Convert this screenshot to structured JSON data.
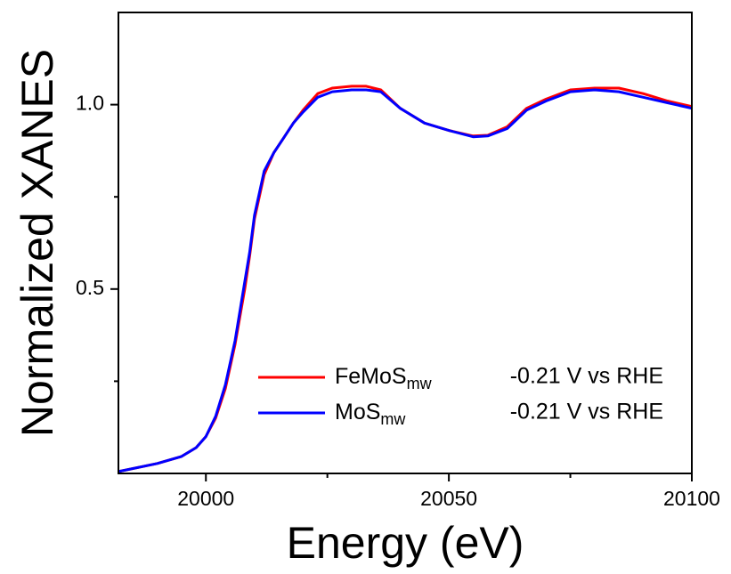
{
  "chart_data": {
    "type": "line",
    "xlabel": "Energy (eV)",
    "ylabel": "Normalized XANES",
    "x": [
      19982,
      19990,
      19995,
      19998,
      20000,
      20002,
      20004,
      20006,
      20008,
      20009,
      20010,
      20012,
      20014,
      20016,
      20018,
      20020,
      20023,
      20026,
      20030,
      20033,
      20036,
      20040,
      20045,
      20050,
      20055,
      20058,
      20062,
      20066,
      20070,
      20075,
      20080,
      20085,
      20090,
      20095,
      20100
    ],
    "series": [
      {
        "name": "FeMoS",
        "subscript": "mw",
        "condition": "-0.21 V vs RHE",
        "color": "#ff0000",
        "values": [
          0.005,
          0.027,
          0.046,
          0.07,
          0.1,
          0.15,
          0.23,
          0.35,
          0.5,
          0.59,
          0.69,
          0.81,
          0.87,
          0.91,
          0.95,
          0.985,
          1.03,
          1.045,
          1.05,
          1.05,
          1.04,
          0.99,
          0.95,
          0.93,
          0.915,
          0.917,
          0.94,
          0.99,
          1.015,
          1.04,
          1.045,
          1.045,
          1.03,
          1.01,
          0.995
        ]
      },
      {
        "name": "MoS",
        "subscript": "mw",
        "condition": "-0.21 V vs RHE",
        "color": "#0000ff",
        "values": [
          0.005,
          0.027,
          0.046,
          0.07,
          0.1,
          0.155,
          0.24,
          0.36,
          0.52,
          0.6,
          0.7,
          0.82,
          0.87,
          0.91,
          0.95,
          0.98,
          1.02,
          1.035,
          1.04,
          1.04,
          1.035,
          0.99,
          0.95,
          0.93,
          0.913,
          0.915,
          0.935,
          0.985,
          1.01,
          1.035,
          1.04,
          1.035,
          1.02,
          1.005,
          0.99
        ]
      }
    ],
    "xlim": [
      19982,
      20100
    ],
    "ylim": [
      0,
      1.25
    ],
    "xticks": [
      20000,
      20050,
      20100
    ],
    "x_minor_ticks": [
      20025,
      20075
    ],
    "yticks": [
      {
        "value": 0.5,
        "label": "0.5"
      },
      {
        "value": 1.0,
        "label": "1.0"
      }
    ],
    "y_minor_ticks": [
      0.25,
      0.75
    ],
    "line_width": 3,
    "legend": "lower right"
  }
}
